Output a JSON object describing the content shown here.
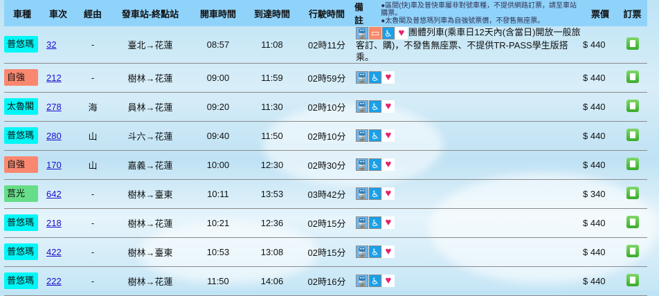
{
  "headers": {
    "type": "車種",
    "train_no": "車次",
    "via": "經由",
    "route": "發車站-終點站",
    "depart": "開車時間",
    "arrive": "到達時間",
    "duration": "行駛時間",
    "notes": "備註",
    "price": "票價",
    "book": "訂票"
  },
  "header_notes": [
    "●區間(快)車及普快車屬非對號車種，不提供網路訂票，請至車站購票。",
    "●太魯閣及普悠瑪列車為自強號票價，不發售無座票。"
  ],
  "type_colors": {
    "普悠瑪": "#00f7f7",
    "自強": "#fa8870",
    "太魯閣": "#00f7f7",
    "莒光": "#66dd88"
  },
  "rows": [
    {
      "type": "普悠瑪",
      "no": "32",
      "via": "-",
      "route": "臺北→花蓮",
      "depart": "08:57",
      "arrive": "11:08",
      "duration": "02時11分",
      "icons": [
        "train-icon",
        "dining-car-icon",
        "wheelchair-icon",
        "nursing-room-icon"
      ],
      "note": "團體列車(乘車日12天內(含當日)開放一般旅客訂、購)，不發售無座票、不提供TR-PASS學生版搭乘。",
      "price": "$ 440"
    },
    {
      "type": "自強",
      "no": "212",
      "via": "-",
      "route": "樹林→花蓮",
      "depart": "09:00",
      "arrive": "11:59",
      "duration": "02時59分",
      "icons": [
        "train-icon",
        "wheelchair-icon",
        "nursing-room-icon"
      ],
      "note": "",
      "price": "$ 440"
    },
    {
      "type": "太魯閣",
      "no": "278",
      "via": "海",
      "route": "員林→花蓮",
      "depart": "09:20",
      "arrive": "11:30",
      "duration": "02時10分",
      "icons": [
        "train-icon",
        "wheelchair-icon",
        "nursing-room-icon"
      ],
      "note": "",
      "price": "$ 440"
    },
    {
      "type": "普悠瑪",
      "no": "280",
      "via": "山",
      "route": "斗六→花蓮",
      "depart": "09:40",
      "arrive": "11:50",
      "duration": "02時10分",
      "icons": [
        "train-icon",
        "wheelchair-icon",
        "nursing-room-icon"
      ],
      "note": "",
      "price": "$ 440"
    },
    {
      "type": "自強",
      "no": "170",
      "via": "山",
      "route": "嘉義→花蓮",
      "depart": "10:00",
      "arrive": "12:30",
      "duration": "02時30分",
      "icons": [
        "train-icon",
        "wheelchair-icon",
        "nursing-room-icon"
      ],
      "note": "",
      "price": "$ 440"
    },
    {
      "type": "莒光",
      "no": "642",
      "via": "-",
      "route": "樹林→臺東",
      "depart": "10:11",
      "arrive": "13:53",
      "duration": "03時42分",
      "icons": [
        "train-icon",
        "wheelchair-icon",
        "nursing-room-icon"
      ],
      "note": "",
      "price": "$ 340"
    },
    {
      "type": "普悠瑪",
      "no": "218",
      "via": "-",
      "route": "樹林→花蓮",
      "depart": "10:21",
      "arrive": "12:36",
      "duration": "02時15分",
      "icons": [
        "train-icon",
        "wheelchair-icon",
        "nursing-room-icon"
      ],
      "note": "",
      "price": "$ 440"
    },
    {
      "type": "普悠瑪",
      "no": "422",
      "via": "-",
      "route": "樹林→臺東",
      "depart": "10:53",
      "arrive": "13:08",
      "duration": "02時15分",
      "icons": [
        "train-icon",
        "wheelchair-icon",
        "nursing-room-icon"
      ],
      "note": "",
      "price": "$ 440"
    },
    {
      "type": "普悠瑪",
      "no": "222",
      "via": "-",
      "route": "樹林→花蓮",
      "depart": "11:50",
      "arrive": "14:06",
      "duration": "02時16分",
      "icons": [
        "train-icon",
        "wheelchair-icon",
        "nursing-room-icon"
      ],
      "note": "",
      "price": "$ 440"
    }
  ]
}
